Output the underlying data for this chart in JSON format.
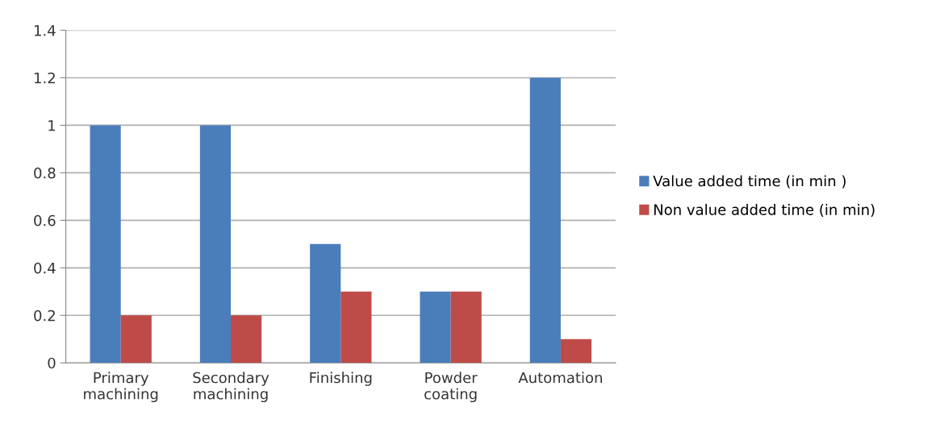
{
  "chart_data": {
    "type": "bar",
    "categories": [
      "Primary\nmachining",
      "Secondary\nmachining",
      "Finishing",
      "Powder\ncoating",
      "Automation"
    ],
    "series": [
      {
        "name": "Value added time (in min )",
        "color": "#4a7ebb",
        "values": [
          1,
          1,
          0.5,
          0.3,
          1.2
        ]
      },
      {
        "name": "Non value added time (in min)",
        "color": "#be4b48",
        "values": [
          0.2,
          0.2,
          0.3,
          0.3,
          0.1
        ]
      }
    ],
    "ylim": [
      0,
      1.4
    ],
    "yticks": [
      0,
      0.2,
      0.4,
      0.6,
      0.8,
      1,
      1.2,
      1.4
    ],
    "grid": "y",
    "legend": "right"
  }
}
